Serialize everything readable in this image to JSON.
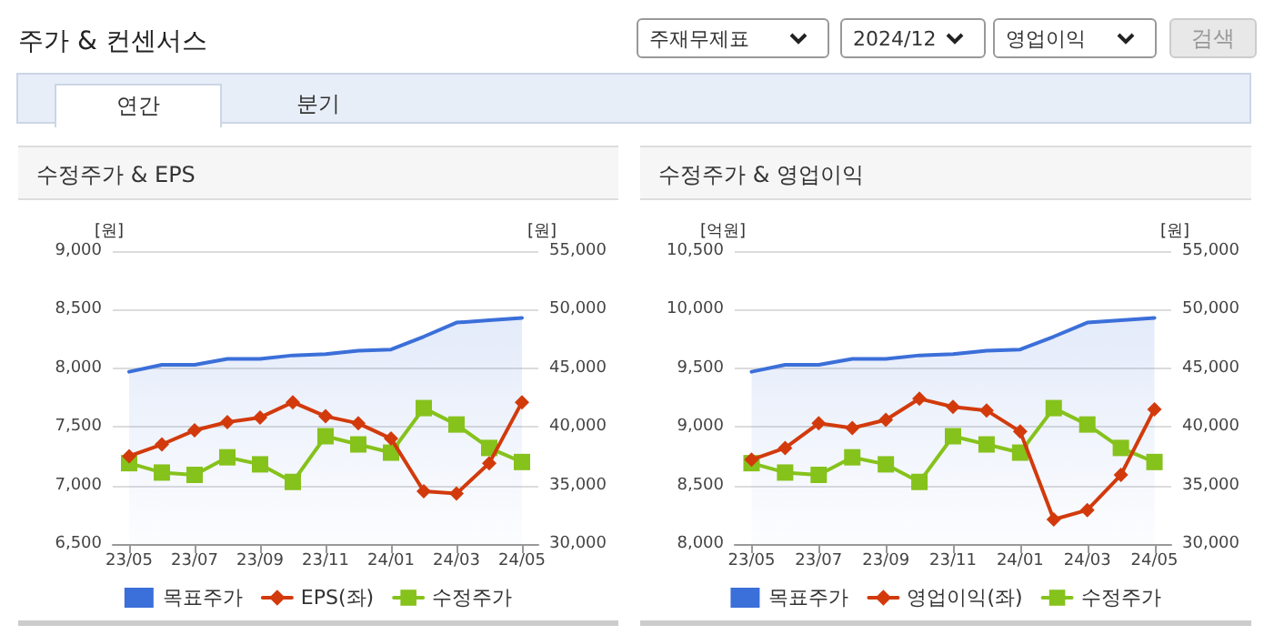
{
  "chart_data": [
    {
      "type": "other",
      "title": "주가 & 컨센서스",
      "annotations": [
        "주재무제표",
        "2024/12",
        "영업이익",
        "검색",
        "연간",
        "분기"
      ]
    },
    {
      "type": "line",
      "title": "수정주가 & EPS",
      "ylabel": "[원]",
      "y2label": "[원]",
      "categories": [
        "23/05",
        null,
        "23/07",
        null,
        "23/09",
        null,
        "23/11",
        null,
        "24/01",
        null,
        "24/03",
        null,
        "24/05"
      ],
      "series": [
        {
          "name": "목표주가",
          "type": "area",
          "axis": "y2",
          "color": "#3b6fd9",
          "marker": "none",
          "values": [
            44700,
            45300,
            45300,
            45800,
            45800,
            46100,
            46200,
            46500,
            46600,
            47700,
            48900,
            49100,
            49300
          ]
        },
        {
          "name": "EPS(좌)",
          "type": "line",
          "color": "#d23a0c",
          "marker": "diamond",
          "values": [
            7250,
            7350,
            7470,
            7540,
            7580,
            7710,
            7590,
            7530,
            7400,
            6950,
            6930,
            7190,
            7710
          ]
        },
        {
          "name": "수정주가",
          "type": "line",
          "axis": "y2",
          "color": "#86c21c",
          "marker": "square",
          "values": [
            36900,
            36100,
            35900,
            37400,
            36800,
            35300,
            39200,
            38500,
            37800,
            41600,
            40200,
            38200,
            37000
          ]
        }
      ],
      "ylim": [
        6500,
        9000
      ],
      "yticks": [
        {
          "value": 6500,
          "label": "6,500"
        },
        {
          "value": 7000,
          "label": "7,000"
        },
        {
          "value": 7500,
          "label": "7,500"
        },
        {
          "value": 8000,
          "label": "8,000"
        },
        {
          "value": 8500,
          "label": "8,500"
        },
        {
          "value": 9000,
          "label": "9,000"
        }
      ],
      "y2lim": [
        30000,
        55000
      ],
      "y2ticks": [
        {
          "value": 30000,
          "label": "30,000"
        },
        {
          "value": 35000,
          "label": "35,000"
        },
        {
          "value": 40000,
          "label": "40,000"
        },
        {
          "value": 45000,
          "label": "45,000"
        },
        {
          "value": 50000,
          "label": "50,000"
        },
        {
          "value": 55000,
          "label": "55,000"
        }
      ],
      "grid": "y",
      "legend": "bottom"
    },
    {
      "type": "line",
      "title": "수정주가 & 영업이익",
      "ylabel": "[억원]",
      "y2label": "[원]",
      "categories": [
        "23/05",
        null,
        "23/07",
        null,
        "23/09",
        null,
        "23/11",
        null,
        "24/01",
        null,
        "24/03",
        null,
        "24/05"
      ],
      "series": [
        {
          "name": "목표주가",
          "type": "area",
          "axis": "y2",
          "color": "#3b6fd9",
          "marker": "none",
          "values": [
            44700,
            45300,
            45300,
            45800,
            45800,
            46100,
            46200,
            46500,
            46600,
            47700,
            48900,
            49100,
            49300
          ]
        },
        {
          "name": "영업이익(좌)",
          "type": "line",
          "color": "#d23a0c",
          "marker": "diamond",
          "values": [
            8720,
            8820,
            9030,
            8990,
            9060,
            9240,
            9170,
            9140,
            8960,
            8210,
            8290,
            8590,
            9150
          ]
        },
        {
          "name": "수정주가",
          "type": "line",
          "axis": "y2",
          "color": "#86c21c",
          "marker": "square",
          "values": [
            36900,
            36100,
            35900,
            37400,
            36800,
            35300,
            39200,
            38500,
            37800,
            41600,
            40200,
            38200,
            37000
          ]
        }
      ],
      "ylim": [
        8000,
        10500
      ],
      "yticks": [
        {
          "value": 8000,
          "label": "8,000"
        },
        {
          "value": 8500,
          "label": "8,500"
        },
        {
          "value": 9000,
          "label": "9,000"
        },
        {
          "value": 9500,
          "label": "9,500"
        },
        {
          "value": 10000,
          "label": "10,000"
        },
        {
          "value": 10500,
          "label": "10,500"
        }
      ],
      "y2lim": [
        30000,
        55000
      ],
      "y2ticks": [
        {
          "value": 30000,
          "label": "30,000"
        },
        {
          "value": 35000,
          "label": "35,000"
        },
        {
          "value": 40000,
          "label": "40,000"
        },
        {
          "value": 45000,
          "label": "45,000"
        },
        {
          "value": 50000,
          "label": "50,000"
        },
        {
          "value": 55000,
          "label": "55,000"
        }
      ],
      "grid": "y",
      "legend": "bottom"
    }
  ]
}
